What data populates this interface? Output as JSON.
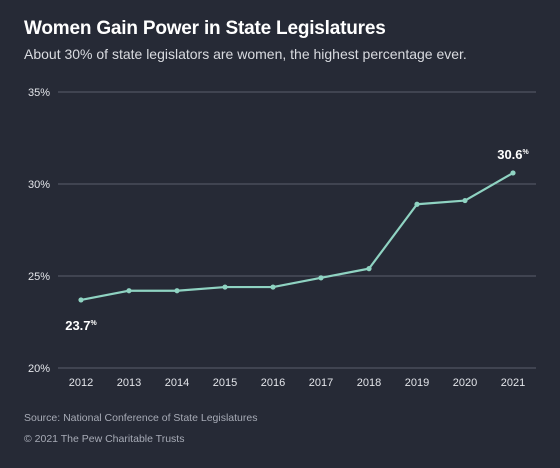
{
  "header": {
    "title": "Women Gain Power in State Legislatures",
    "subtitle": "About 30% of state legislators are women, the highest percentage ever."
  },
  "footer": {
    "source": "Source: National Conference of State Legislatures",
    "copyright": "© 2021 The Pew Charitable Trusts"
  },
  "colors": {
    "background": "#262a36",
    "line": "#8fd3c2",
    "grid": "#5a5f6c",
    "text": "#ffffff"
  },
  "chart_data": {
    "type": "line",
    "title": "Women Gain Power in State Legislatures",
    "subtitle": "About 30% of state legislators are women, the highest percentage ever.",
    "xlabel": "",
    "ylabel": "",
    "x": [
      "2012",
      "2013",
      "2014",
      "2015",
      "2016",
      "2017",
      "2018",
      "2019",
      "2020",
      "2021"
    ],
    "series": [
      {
        "values": [
          23.7,
          24.2,
          24.2,
          24.4,
          24.4,
          24.9,
          25.4,
          28.9,
          29.1,
          30.6
        ]
      }
    ],
    "ylim": [
      20,
      35
    ],
    "yticks": [
      20,
      25,
      30,
      35
    ],
    "ytick_labels": [
      "20%",
      "25%",
      "30%",
      "35%"
    ],
    "grid": true,
    "annotations": [
      {
        "text": "23.7",
        "suffix": "%",
        "at": "2012",
        "position": "below"
      },
      {
        "text": "30.6",
        "suffix": "%",
        "at": "2021",
        "position": "above"
      }
    ]
  }
}
